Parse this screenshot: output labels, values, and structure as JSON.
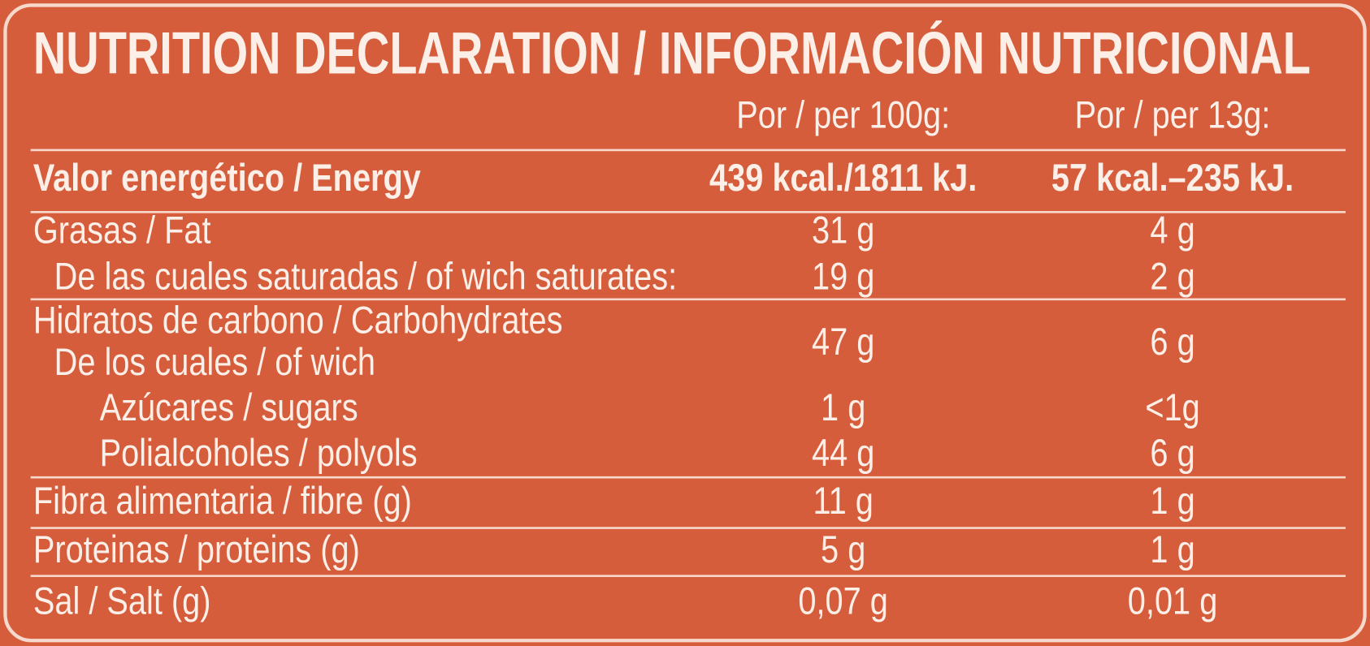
{
  "title": "NUTRITION DECLARATION / INFORMACIÓN NUTRICIONAL",
  "table": {
    "headers": [
      "Por / per 100g:",
      "Por / per 13g:"
    ],
    "rows": [
      {
        "label": [
          "Valor energético / Energy"
        ],
        "values": [
          "439 kcal./1811 kJ.",
          "57 kcal.–235 kJ."
        ]
      },
      {
        "label": [
          "Grasas / Fat"
        ],
        "values": [
          "31 g",
          "4 g"
        ]
      },
      {
        "label": [
          "De las cuales saturadas / of wich saturates:"
        ],
        "values": [
          "19 g",
          "2 g"
        ]
      },
      {
        "label": [
          "Hidratos de carbono / Carbohydrates",
          "De los cuales / of wich"
        ],
        "values": [
          "47 g",
          "6 g"
        ]
      },
      {
        "label": [
          "Azúcares / sugars"
        ],
        "values": [
          "1 g",
          "<1g"
        ]
      },
      {
        "label": [
          "Polialcoholes / polyols"
        ],
        "values": [
          "44 g",
          "6 g"
        ]
      },
      {
        "label": [
          "Fibra alimentaria / fibre (g)"
        ],
        "values": [
          "11 g",
          "1 g"
        ]
      },
      {
        "label": [
          "Proteinas / proteins (g)"
        ],
        "values": [
          "5 g",
          "1 g"
        ]
      },
      {
        "label": [
          "Sal / Salt (g)"
        ],
        "values": [
          "0,07 g",
          "0,01 g"
        ]
      }
    ]
  }
}
